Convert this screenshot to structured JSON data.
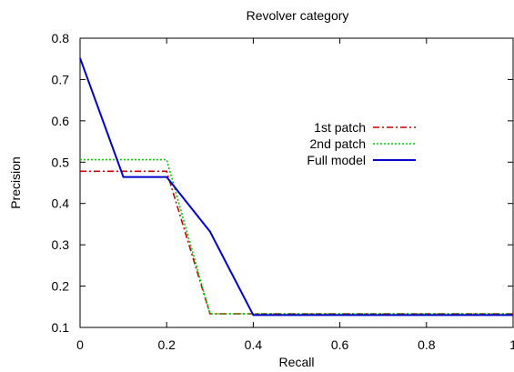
{
  "chart_data": {
    "type": "line",
    "title": "Revolver category",
    "xlabel": "Recall",
    "ylabel": "Precision",
    "xlim": [
      0,
      1
    ],
    "ylim": [
      0.1,
      0.8
    ],
    "x_ticks": [
      {
        "value": 0,
        "label": "0"
      },
      {
        "value": 0.2,
        "label": "0.2"
      },
      {
        "value": 0.4,
        "label": "0.4"
      },
      {
        "value": 0.6,
        "label": "0.6"
      },
      {
        "value": 0.8,
        "label": "0.8"
      },
      {
        "value": 1,
        "label": "1"
      }
    ],
    "y_ticks": [
      {
        "value": 0.1,
        "label": "0.1"
      },
      {
        "value": 0.2,
        "label": "0.2"
      },
      {
        "value": 0.3,
        "label": "0.3"
      },
      {
        "value": 0.4,
        "label": "0.4"
      },
      {
        "value": 0.5,
        "label": "0.5"
      },
      {
        "value": 0.6,
        "label": "0.6"
      },
      {
        "value": 0.7,
        "label": "0.7"
      },
      {
        "value": 0.8,
        "label": "0.8"
      }
    ],
    "grid": false,
    "legend_position": "right",
    "series": [
      {
        "name": "1st patch",
        "color": "#cc0000",
        "dash": "dash-dot",
        "points": [
          [
            0,
            0.478
          ],
          [
            0.2,
            0.478
          ],
          [
            0.3,
            0.133
          ],
          [
            1,
            0.133
          ]
        ]
      },
      {
        "name": "2nd patch",
        "color": "#00cc00",
        "dash": "dotted",
        "points": [
          [
            0,
            0.506
          ],
          [
            0.2,
            0.506
          ],
          [
            0.3,
            0.133
          ],
          [
            1,
            0.133
          ]
        ]
      },
      {
        "name": "Full model",
        "color": "#0000cc",
        "dash": "solid",
        "points": [
          [
            0,
            0.752
          ],
          [
            0.1,
            0.464
          ],
          [
            0.2,
            0.464
          ],
          [
            0.3,
            0.332
          ],
          [
            0.4,
            0.13
          ],
          [
            1,
            0.13
          ]
        ]
      }
    ]
  }
}
